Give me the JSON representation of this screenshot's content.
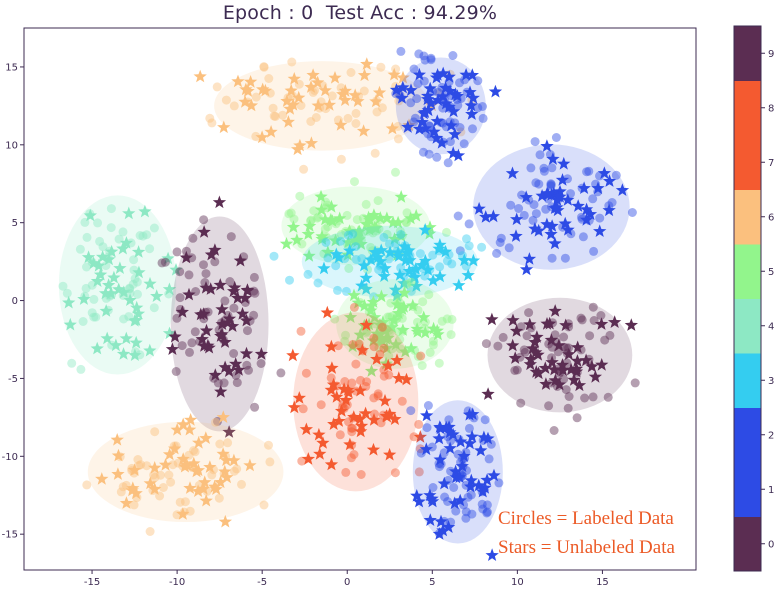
{
  "title": "Epoch : 0  Test Acc : 94.29%",
  "chart_data": {
    "type": "scatter",
    "title": "Epoch : 0  Test Acc : 94.29%",
    "xlabel": "",
    "ylabel": "",
    "xlim": [
      -19,
      20.5
    ],
    "ylim": [
      -17.3,
      17.5
    ],
    "x_ticks": [
      -15,
      -10,
      -5,
      0,
      5,
      10,
      15
    ],
    "y_ticks": [
      -15,
      -10,
      -5,
      0,
      5,
      10,
      15
    ],
    "grid": false,
    "colorbar": {
      "ticks": [
        0,
        1,
        2,
        3,
        4,
        5,
        6,
        7,
        8,
        9
      ],
      "colors": [
        "#5b2d52",
        "#2d4be5",
        "#2d4be5",
        "#34cdf0",
        "#8de8c4",
        "#92f58c",
        "#fbc07e",
        "#f45a30",
        "#f45a30",
        "#5b2d52"
      ]
    },
    "class_colors": {
      "0": "#5b2d52",
      "1": "#2d4be5",
      "2": "#2d4be5",
      "3": "#34cdf0",
      "4": "#8de8c4",
      "5": "#92f58c",
      "6": "#fbc07e",
      "7": "#f45a30",
      "8": "#f45a30",
      "9": "#5b2d52"
    },
    "marker_legend": {
      "circles": "Circles = Labeled Data",
      "stars": "Stars = Unlabeled Data"
    },
    "clusters": [
      {
        "label": 6,
        "center": [
          -1.5,
          12.5
        ],
        "spread": [
          5.5,
          2.5
        ]
      },
      {
        "label": 1,
        "center": [
          5.5,
          12.5
        ],
        "spread": [
          2.3,
          2.7
        ]
      },
      {
        "label": 2,
        "center": [
          12.0,
          6.0
        ],
        "spread": [
          4.0,
          3.5
        ]
      },
      {
        "label": 5,
        "center": [
          0.5,
          4.8
        ],
        "spread": [
          3.8,
          2.2
        ]
      },
      {
        "label": 3,
        "center": [
          2.5,
          2.5
        ],
        "spread": [
          4.5,
          2.0
        ]
      },
      {
        "label": 4,
        "center": [
          -13.5,
          1.0
        ],
        "spread": [
          3.0,
          5.0
        ]
      },
      {
        "label": 9,
        "center": [
          -7.5,
          -1.5
        ],
        "spread": [
          2.5,
          6.0
        ]
      },
      {
        "label": 5,
        "center": [
          2.8,
          -1.5
        ],
        "spread": [
          3.0,
          2.5
        ]
      },
      {
        "label": 0,
        "center": [
          12.5,
          -3.5
        ],
        "spread": [
          3.7,
          3.2
        ]
      },
      {
        "label": 7,
        "center": [
          0.5,
          -6.5
        ],
        "spread": [
          3.2,
          5.0
        ]
      },
      {
        "label": 6,
        "center": [
          -9.5,
          -11.0
        ],
        "spread": [
          5.0,
          2.8
        ]
      },
      {
        "label": 1,
        "center": [
          6.5,
          -11.0
        ],
        "spread": [
          2.3,
          4.0
        ]
      }
    ]
  }
}
